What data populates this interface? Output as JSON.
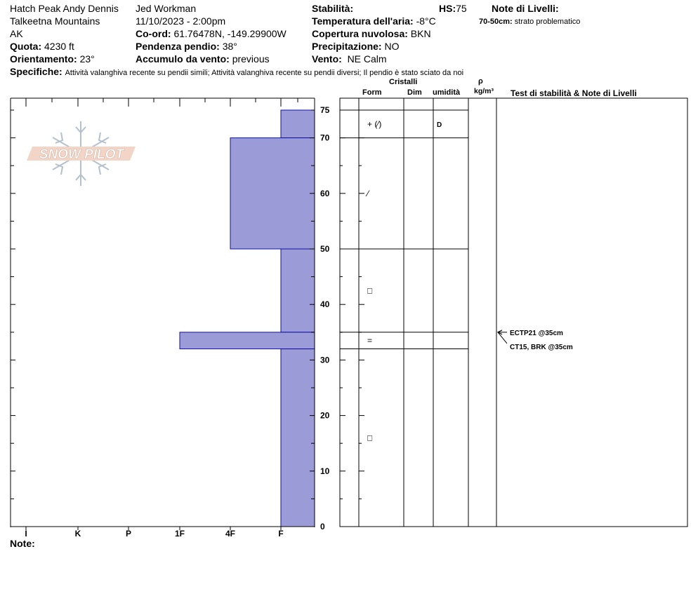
{
  "header": {
    "location": "Hatch Peak Andy Dennis",
    "range": "Talkeetna Mountains",
    "state": "AK",
    "elevation_label": "Quota:",
    "elevation_value": "4230 ft",
    "aspect_label": "Orientamento:",
    "aspect_value": "23°",
    "observer": "Jed Workman",
    "datetime": "11/10/2023 - 2:00pm",
    "coord_label": "Co-ord:",
    "coord_value": "61.76478N, -149.29900W",
    "slope_label": "Pendenza pendio:",
    "slope_value": "38°",
    "wind_loading_label": "Accumulo da vento:",
    "wind_loading_value": "previous",
    "stability_label": "Stabilità:",
    "hs_label": "HS:",
    "hs_value": "75",
    "air_temp_label": "Temperatura dell'aria:",
    "air_temp_value": "-8°C",
    "cloud_label": "Copertura nuvolosa:",
    "cloud_value": "BKN",
    "precip_label": "Precipitazione:",
    "precip_value": "NO",
    "wind_label": "Vento:",
    "wind_value": "NE Calm",
    "layer_notes_label": "Note di Livelli:",
    "layer_note_depth": "70-50cm:",
    "layer_note_text": "strato problematico",
    "specifics_label": "Specifiche:",
    "specifics_text": "Attività valanghiva recente su pendii simili;  Attività valanghiva recente su pendii diversi;  Il pendio è stato sciato da noi"
  },
  "logo": {
    "text": "SNOW PILOT"
  },
  "table_headers": {
    "crystals": "Cristalli",
    "form": "Form",
    "size": "Dim",
    "moisture": "umidità",
    "rho": "ρ",
    "density_unit": "kg/m³",
    "tests": "Test di stabilità & Note di Livelli"
  },
  "footer": {
    "notes_label": "Note:"
  },
  "colors": {
    "hardness_fill": "#9b9bd8",
    "hardness_stroke": "#1010a0"
  },
  "chart_data": {
    "type": "bar",
    "orientation": "horizontal-profile",
    "y_axis": {
      "label": "",
      "range": [
        0,
        75
      ],
      "ticks": [
        0,
        10,
        20,
        30,
        40,
        50,
        60,
        70,
        75
      ]
    },
    "x_axis": {
      "categories": [
        "I",
        "K",
        "P",
        "1F",
        "4F",
        "F"
      ]
    },
    "hardness_layers": [
      {
        "top": 75,
        "bottom": 70,
        "hardness": "F"
      },
      {
        "top": 70,
        "bottom": 50,
        "hardness": "4F"
      },
      {
        "top": 50,
        "bottom": 35,
        "hardness": "F"
      },
      {
        "top": 35,
        "bottom": 32,
        "hardness": "1F"
      },
      {
        "top": 32,
        "bottom": 0,
        "hardness": "F"
      }
    ],
    "layer_boundaries": [
      75,
      70,
      50,
      35,
      32
    ],
    "crystal_rows": [
      {
        "depth": 72.5,
        "form": "+ (⁄)",
        "moisture": "D"
      },
      {
        "depth": 60,
        "form": "⁄",
        "moisture": ""
      },
      {
        "depth": 42.5,
        "form": "□",
        "moisture": ""
      },
      {
        "depth": 33.5,
        "form": "=",
        "moisture": ""
      },
      {
        "depth": 16,
        "form": "□",
        "moisture": ""
      }
    ],
    "stability_tests": [
      {
        "depth": 35,
        "label": "ECTP21 @35cm"
      },
      {
        "depth": 35,
        "label": "CT15, BRK @35cm"
      }
    ]
  }
}
